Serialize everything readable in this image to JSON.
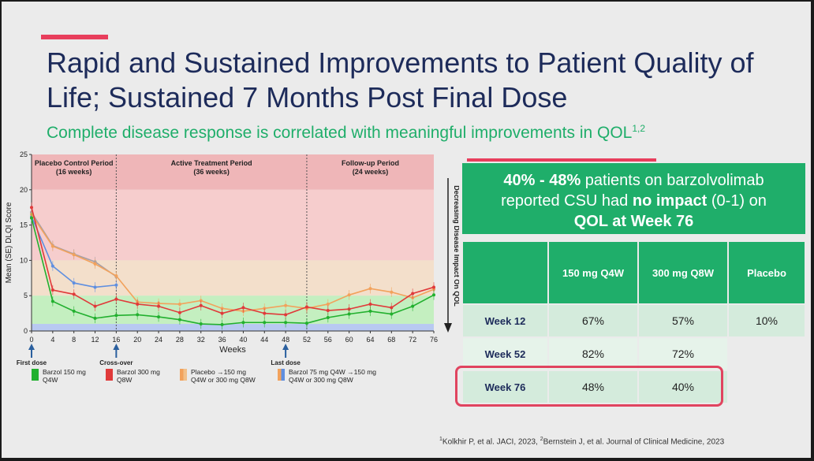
{
  "title": "Rapid and Sustained Improvements to Patient Quality of Life; Sustained 7 Months Post Final Dose",
  "subtitle": "Complete disease response is correlated with meaningful improvements in QOL",
  "subtitle_sup": "1,2",
  "colors": {
    "accent": "#e83e5c",
    "green": "#1fae6a",
    "navy": "#1d2b5a"
  },
  "chart_data": {
    "type": "line",
    "ylabel": "Mean (SE) DLQI Score",
    "xlabel": "Weeks",
    "ylim": [
      0,
      25
    ],
    "yticks": [
      0,
      5,
      10,
      15,
      20,
      25
    ],
    "xticks": [
      0,
      4,
      8,
      12,
      16,
      20,
      24,
      28,
      32,
      36,
      40,
      44,
      48,
      52,
      56,
      60,
      64,
      68,
      72,
      76
    ],
    "right_label": "Decreasing Disease Impact On QOL",
    "periods": [
      {
        "name": "Placebo Control Period",
        "duration": "(16 weeks)",
        "x_start": 0,
        "x_end": 16
      },
      {
        "name": "Active Treatment Period",
        "duration": "(36 weeks)",
        "x_start": 16,
        "x_end": 52
      },
      {
        "name": "Follow-up Period",
        "duration": "(24 weeks)",
        "x_start": 52,
        "x_end": 76
      }
    ],
    "markers": [
      {
        "label": "First dose",
        "x": 0
      },
      {
        "label": "Cross-over",
        "x": 16
      },
      {
        "label": "Last dose",
        "x": 48
      }
    ],
    "bands": [
      {
        "from": 20,
        "to": 25,
        "color": "#efb6b8"
      },
      {
        "from": 10,
        "to": 20,
        "color": "#f6cdcd"
      },
      {
        "from": 5,
        "to": 10,
        "color": "#f3dfcb"
      },
      {
        "from": 1,
        "to": 5,
        "color": "#c4efc0"
      },
      {
        "from": 0,
        "to": 1,
        "color": "#b8c9f1"
      }
    ],
    "series": [
      {
        "name": "Barzol 150 mg Q4W",
        "color": "#22b02f",
        "x": [
          0,
          4,
          8,
          12,
          16,
          20,
          24,
          28,
          32,
          36,
          40,
          44,
          48,
          52,
          56,
          60,
          64,
          68,
          72,
          76
        ],
        "y": [
          16,
          4.2,
          2.8,
          1.8,
          2.2,
          2.3,
          2.0,
          1.6,
          1.0,
          0.9,
          1.2,
          1.2,
          1.2,
          1.1,
          1.9,
          2.4,
          2.8,
          2.4,
          3.5,
          5.1
        ]
      },
      {
        "name": "Barzol 300 mg Q8W",
        "color": "#e03a3a",
        "x": [
          0,
          4,
          8,
          12,
          16,
          20,
          24,
          28,
          32,
          36,
          40,
          44,
          48,
          52,
          56,
          60,
          64,
          68,
          72,
          76
        ],
        "y": [
          17.5,
          5.8,
          5.2,
          3.5,
          4.5,
          3.8,
          3.5,
          2.6,
          3.6,
          2.5,
          3.3,
          2.5,
          2.3,
          3.4,
          2.9,
          3.1,
          3.8,
          3.3,
          5.3,
          6.2
        ]
      },
      {
        "name": "Placebo →150 mg Q4W or 300 mg Q8W",
        "color": "#f2a25c",
        "x": [
          0,
          4,
          8,
          12,
          16,
          20,
          24,
          28,
          32,
          36,
          40,
          44,
          48,
          52,
          56,
          60,
          64,
          68,
          72,
          76
        ],
        "y": [
          16.5,
          12,
          10.8,
          9.5,
          7.8,
          4.1,
          3.9,
          3.8,
          4.3,
          3.2,
          2.8,
          3.2,
          3.6,
          3.2,
          3.8,
          5.1,
          6.0,
          5.5,
          4.7,
          5.9
        ]
      },
      {
        "name": "Barzol 75 mg Q4W →150 mg Q4W or 300 mg Q8W",
        "color": "#5f8fe0",
        "x": [
          0,
          4,
          8,
          12,
          16
        ],
        "y": [
          16.2,
          9.2,
          6.8,
          6.2,
          6.5
        ]
      }
    ],
    "series_grey": {
      "name": "",
      "color": "#a59fa6",
      "x": [
        0,
        4,
        8,
        12,
        16
      ],
      "y": [
        16.8,
        12.1,
        10.9,
        9.8,
        7.7
      ]
    }
  },
  "legend": [
    {
      "label": "Barzol 150 mg Q4W",
      "colors": [
        "#22b02f"
      ]
    },
    {
      "label": "Barzol 300 mg Q8W",
      "colors": [
        "#e03a3a"
      ]
    },
    {
      "label": "Placebo →150 mg Q4W or 300 mg Q8W",
      "colors": [
        "#f2a25c",
        "#f2c08a"
      ]
    },
    {
      "label": "Barzol 75 mg Q4W →150 mg Q4W or 300 mg Q8W",
      "colors": [
        "#f2a25c",
        "#5f8fe0"
      ]
    }
  ],
  "callout": {
    "pct": "40% - 48%",
    "t1": " patients on barzolvolimab",
    "t2": "reported CSU had ",
    "no_impact": "no impact",
    "t3": " (0-1) on",
    "t4": "QOL at Week 76"
  },
  "table": {
    "headers": [
      "",
      "150 mg Q4W",
      "300 mg Q8W",
      "Placebo"
    ],
    "rows": [
      {
        "label": "Week 12",
        "values": [
          "67%",
          "57%",
          "10%"
        ]
      },
      {
        "label": "Week 52",
        "values": [
          "82%",
          "72%",
          ""
        ]
      },
      {
        "label": "Week 76",
        "values": [
          "48%",
          "40%",
          ""
        ]
      }
    ]
  },
  "footnote": {
    "s1": "1",
    "t1": "Kolkhir P, et al. JACI, 2023, ",
    "s2": "2",
    "t2": "Bernstein J, et al. Journal of Clinical Medicine, 2023"
  }
}
